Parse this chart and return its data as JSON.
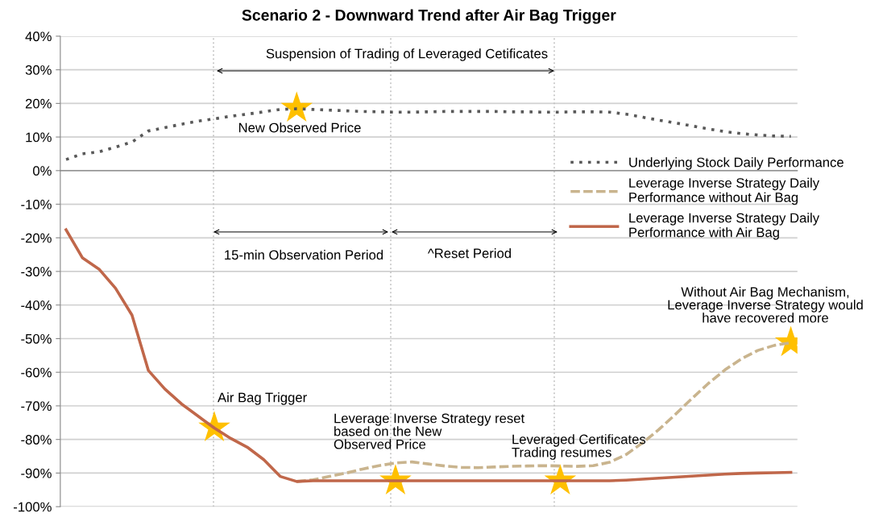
{
  "chart_data": {
    "type": "line",
    "title": "Scenario 2 - Downward Trend after Air Bag Trigger",
    "categories": [
      null,
      null,
      null,
      null,
      null,
      null,
      null,
      null,
      null,
      null,
      null,
      null,
      null,
      null,
      null,
      null,
      null,
      null,
      null,
      null,
      null,
      null,
      null,
      null,
      null,
      null,
      null,
      null,
      null,
      null,
      null,
      null,
      null,
      null,
      null,
      null,
      null,
      null,
      null,
      null,
      null,
      null,
      null,
      null,
      null
    ],
    "series": [
      {
        "name": "Underlying Stock Daily Performance",
        "color": "#595959",
        "line_style": "dotted",
        "values": [
          3.3,
          5.0,
          5.6,
          7.0,
          8.5,
          11.8,
          12.8,
          13.8,
          14.7,
          15.4,
          16.2,
          16.8,
          17.5,
          18.2,
          18.4,
          18.2,
          18.0,
          17.8,
          17.6,
          17.5,
          17.4,
          17.4,
          17.5,
          17.6,
          17.6,
          17.6,
          17.6,
          17.5,
          17.5,
          17.4,
          17.4,
          17.5,
          17.5,
          17.4,
          16.8,
          15.9,
          15.0,
          14.2,
          13.3,
          12.4,
          11.6,
          11.0,
          10.6,
          10.3,
          10.2
        ]
      },
      {
        "name": "Leverage Inverse Strategy Daily\nPerformance without Air Bag",
        "color": "#c9b48e",
        "line_style": "dashed",
        "values": [
          null,
          null,
          null,
          null,
          null,
          null,
          null,
          null,
          null,
          null,
          null,
          null,
          null,
          null,
          -92.5,
          -92,
          -91,
          -90,
          -88.8,
          -87.8,
          -87.0,
          -86.7,
          -87.3,
          -87.9,
          -88.3,
          -88.4,
          -88.2,
          -88.0,
          -87.9,
          -87.8,
          -87.9,
          -88.0,
          -87.8,
          -86.8,
          -84.5,
          -81,
          -77,
          -72.5,
          -67.8,
          -63.3,
          -59.3,
          -56,
          -53.5,
          -52,
          -51.2
        ]
      },
      {
        "name": "Leverage Inverse Strategy Daily\nPerformance with Air Bag",
        "color": "#c0674a",
        "line_style": "solid",
        "values": [
          -17.6,
          -26.0,
          -29.3,
          -35,
          -43,
          -59.5,
          -65,
          -69.4,
          -73,
          -76.6,
          -79.7,
          -82.3,
          -86,
          -91,
          -92.5,
          -92.3,
          -92.3,
          -92.3,
          -92.3,
          -92.3,
          -92.3,
          -92.3,
          -92.3,
          -92.3,
          -92.3,
          -92.3,
          -92.3,
          -92.3,
          -92.3,
          -92.3,
          -92.3,
          -92.3,
          -92.3,
          -92.3,
          -92.1,
          -91.8,
          -91.5,
          -91.2,
          -90.9,
          -90.6,
          -90.3,
          -90.1,
          -90.0,
          -89.9,
          -89.8
        ]
      },
      {
        "type": "scatter",
        "marker": "star",
        "color": "#ffc000",
        "values": [
          null,
          null,
          null,
          null,
          null,
          null,
          null,
          null,
          null,
          -76.5,
          null,
          null,
          null,
          null,
          18.6,
          null,
          null,
          null,
          null,
          null,
          -92.3,
          null,
          null,
          null,
          null,
          null,
          null,
          null,
          null,
          null,
          -92.3,
          null,
          null,
          null,
          null,
          null,
          null,
          null,
          null,
          null,
          null,
          null,
          null,
          null,
          -51.2
        ]
      }
    ],
    "ylim": [
      -100,
      40
    ],
    "yticks": [
      {
        "value": -100,
        "label": "-100%"
      },
      {
        "value": -90,
        "label": "-90%"
      },
      {
        "value": -80,
        "label": "-80%"
      },
      {
        "value": -70,
        "label": "-70%"
      },
      {
        "value": -60,
        "label": "-60%"
      },
      {
        "value": -50,
        "label": "-50%"
      },
      {
        "value": -40,
        "label": "-40%"
      },
      {
        "value": -30,
        "label": "-30%"
      },
      {
        "value": -20,
        "label": "-20%"
      },
      {
        "value": -10,
        "label": "-10%"
      },
      {
        "value": 0,
        "label": "0%"
      },
      {
        "value": 10,
        "label": "10%"
      },
      {
        "value": 20,
        "label": "20%"
      },
      {
        "value": 30,
        "label": "30%"
      },
      {
        "value": 40,
        "label": "40%"
      }
    ],
    "grid": "y",
    "legend": "right",
    "tick_labels": "y",
    "annotations": [
      "Suspension of Trading of Leveraged Cetificates",
      "New Observed Price",
      "15-min Observation Period",
      "^Reset Period",
      "Air Bag Trigger",
      "Leverage Inverse Strategy reset\nbased on the New\nObserved Price",
      "Leveraged Certificates\nTrading resumes",
      "Without Air Bag Mechanism,\nLeverage Inverse Strategy would\nhave recovered more"
    ]
  }
}
